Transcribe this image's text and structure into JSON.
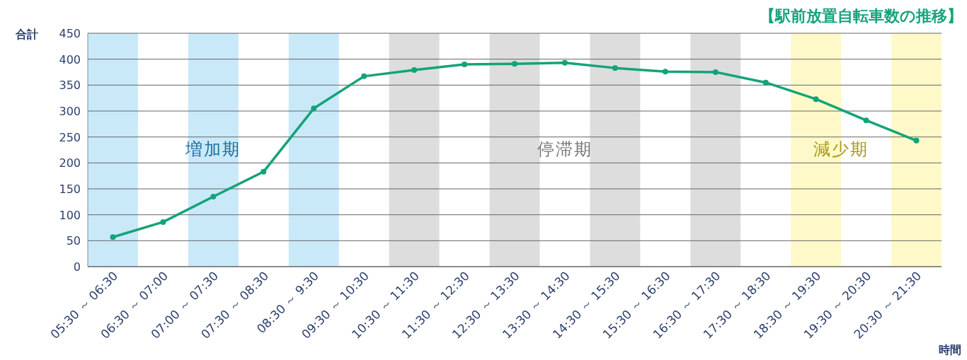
{
  "chart_data": {
    "type": "line",
    "title": "【駅前放置自転車数の推移】",
    "ylabel": "合計",
    "xlabel": "時間",
    "categories": [
      "05:30 ～ 06:30",
      "06:30 ～ 07:00",
      "07:00 ～ 07:30",
      "07:30 ～ 08:30",
      "08:30 ～ 9:30",
      "09:30 ～ 10:30",
      "10:30 ～ 11:30",
      "11:30 ～ 12:30",
      "12:30 ～ 13:30",
      "13:30 ～ 14:30",
      "14:30 ～ 15:30",
      "15:30 ～ 16:30",
      "16:30 ～ 17:30",
      "17:30 ～ 18:30",
      "18:30 ～ 19:30",
      "19:30 ～ 20:30",
      "20:30 ～ 21:30"
    ],
    "series": [
      {
        "color": "#14a37a",
        "values": [
          57,
          86,
          135,
          183,
          305,
          367,
          379,
          390,
          391,
          393,
          383,
          376,
          375,
          355,
          323,
          282,
          243
        ]
      }
    ],
    "ylim": [
      0,
      450
    ],
    "yticks": [
      0,
      50,
      100,
      150,
      200,
      250,
      300,
      350,
      400,
      450
    ],
    "grid": "y",
    "marker": "circle",
    "bands": [
      {
        "axis": "x",
        "from": "05:30 ～ 06:30",
        "to": "05:30 ～ 06:30",
        "color": "#c9e9f9"
      },
      {
        "axis": "x",
        "from": "07:00 ～ 07:30",
        "to": "07:00 ～ 07:30",
        "color": "#c9e9f9"
      },
      {
        "axis": "x",
        "from": "08:30 ～ 9:30",
        "to": "08:30 ～ 9:30",
        "color": "#c9e9f9"
      },
      {
        "axis": "x",
        "from": "10:30 ～ 11:30",
        "to": "10:30 ～ 11:30",
        "color": "#dddddd"
      },
      {
        "axis": "x",
        "from": "12:30 ～ 13:30",
        "to": "12:30 ～ 13:30",
        "color": "#dddddd"
      },
      {
        "axis": "x",
        "from": "14:30 ～ 15:30",
        "to": "14:30 ～ 15:30",
        "color": "#dddddd"
      },
      {
        "axis": "x",
        "from": "16:30 ～ 17:30",
        "to": "16:30 ～ 17:30",
        "color": "#dddddd"
      },
      {
        "axis": "x",
        "from": "18:30 ～ 19:30",
        "to": "18:30 ～ 19:30",
        "color": "#fff9c9"
      },
      {
        "axis": "x",
        "from": "20:30 ～ 21:30",
        "to": "20:30 ～ 21:30",
        "color": "#fff9c9"
      }
    ],
    "annotations": [
      "増加期",
      "停滞期",
      "減少期"
    ]
  }
}
